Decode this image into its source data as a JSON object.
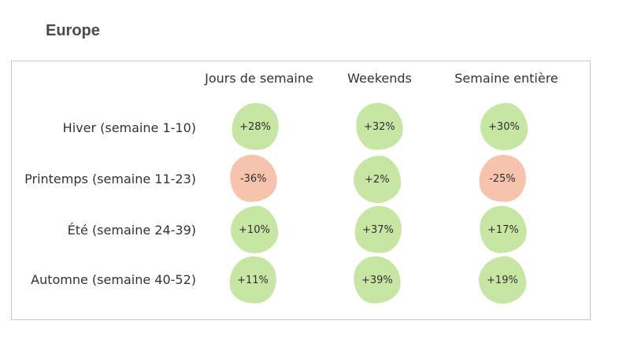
{
  "title": "Europe",
  "columns": [
    "Jours de semaine",
    "Weekends",
    "Semaine entière"
  ],
  "rows": [
    {
      "label": "Hiver (semaine 1-10)",
      "values": [
        "+28%",
        "+32%",
        "+30%"
      ],
      "tones": [
        "pos",
        "pos",
        "pos"
      ]
    },
    {
      "label": "Printemps (semaine 11-23)",
      "values": [
        "-36%",
        "+2%",
        "-25%"
      ],
      "tones": [
        "neg",
        "pos",
        "neg"
      ]
    },
    {
      "label": "Été (semaine 24-39)",
      "values": [
        "+10%",
        "+37%",
        "+17%"
      ],
      "tones": [
        "pos",
        "pos",
        "pos"
      ]
    },
    {
      "label": "Automne (semaine 40-52)",
      "values": [
        "+11%",
        "+39%",
        "+19%"
      ],
      "tones": [
        "pos",
        "pos",
        "pos"
      ]
    }
  ],
  "colors": {
    "positive": "#c8e6a3",
    "negative": "#f6c4ad",
    "border": "#c8c8c8"
  }
}
